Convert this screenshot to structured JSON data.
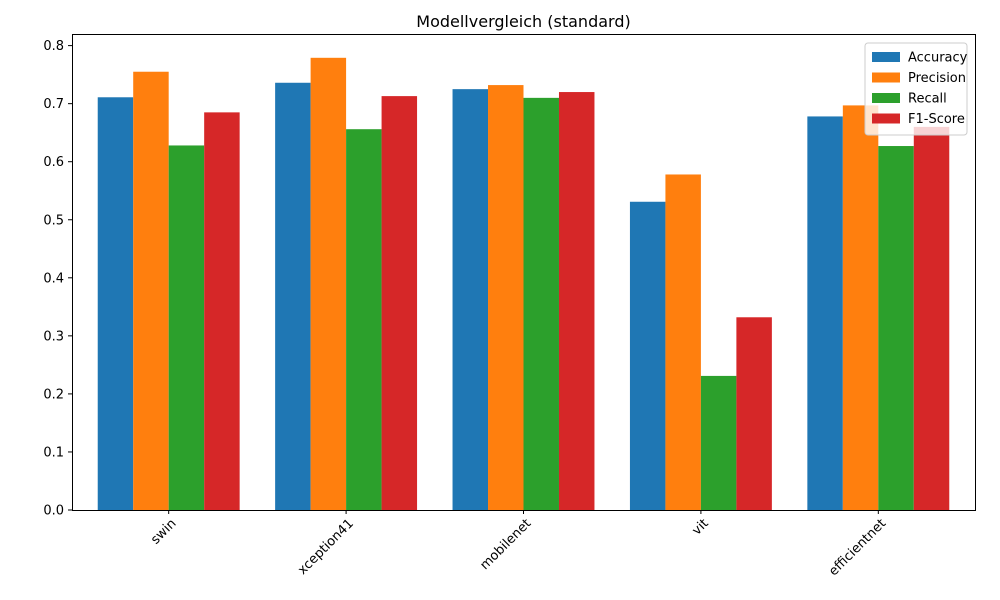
{
  "chart_data": {
    "type": "bar",
    "title": "Modellvergleich (standard)",
    "xlabel": "",
    "ylabel": "",
    "categories": [
      "swin",
      "xception41",
      "mobilenet",
      "vit",
      "efficientnet"
    ],
    "series": [
      {
        "name": "Accuracy",
        "color": "#1f77b4",
        "values": [
          0.711,
          0.736,
          0.725,
          0.531,
          0.678
        ]
      },
      {
        "name": "Precision",
        "color": "#ff7f0e",
        "values": [
          0.755,
          0.779,
          0.732,
          0.578,
          0.697
        ]
      },
      {
        "name": "Recall",
        "color": "#2ca02c",
        "values": [
          0.628,
          0.656,
          0.71,
          0.231,
          0.627
        ]
      },
      {
        "name": "F1-Score",
        "color": "#d62728",
        "values": [
          0.685,
          0.713,
          0.72,
          0.332,
          0.66
        ]
      }
    ],
    "ylim": [
      0,
      0.82
    ],
    "yticks": [
      "0.0",
      "0.1",
      "0.2",
      "0.3",
      "0.4",
      "0.5",
      "0.6",
      "0.7",
      "0.8"
    ],
    "legend": "top-right",
    "grid": false
  }
}
